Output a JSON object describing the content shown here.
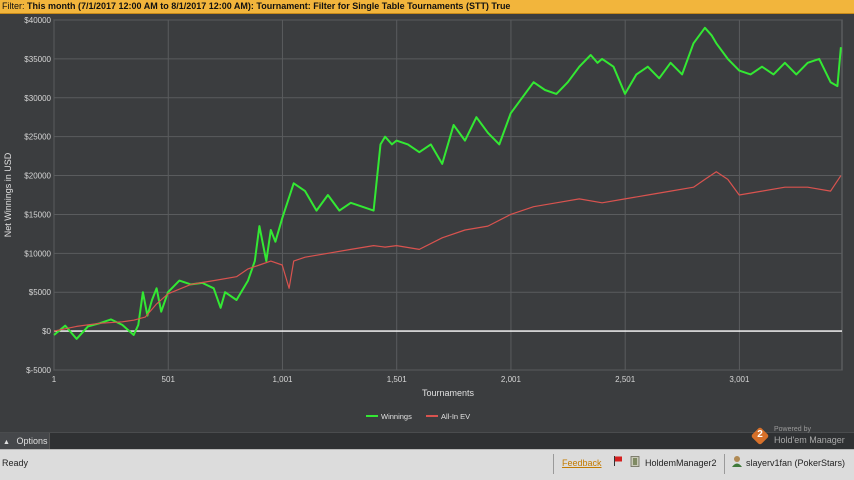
{
  "filter": {
    "label": "Filter:",
    "text": "This month (7/1/2017 12:00 AM to 8/1/2017 12:00 AM): Tournament: Filter for Single Table Tournaments (STT) True"
  },
  "colors": {
    "winnings": "#33e833",
    "allin_ev": "#d9534f",
    "zero_line": "#ffffff",
    "plot_bg": "#3b3d3f",
    "grid": "#5a5c5e"
  },
  "chart_data": {
    "type": "line",
    "xlabel": "Tournaments",
    "ylabel": "Net Winnings in USD",
    "xlim": [
      1,
      3450
    ],
    "ylim": [
      -5000,
      40000
    ],
    "xticks": [
      1,
      501,
      1001,
      1501,
      2001,
      2501,
      3001
    ],
    "xtick_labels": [
      "1",
      "501",
      "1,001",
      "1,501",
      "2,001",
      "2,501",
      "3,001"
    ],
    "yticks": [
      -5000,
      0,
      5000,
      10000,
      15000,
      20000,
      25000,
      30000,
      35000,
      40000
    ],
    "ytick_labels": [
      "$-5000",
      "$0",
      "$5000",
      "$10000",
      "$15000",
      "$20000",
      "$25000",
      "$30000",
      "$35000",
      "$40000"
    ],
    "grid": true,
    "legend_position": "bottom",
    "series": [
      {
        "name": "Winnings",
        "x": [
          1,
          50,
          100,
          150,
          200,
          250,
          300,
          350,
          370,
          390,
          410,
          430,
          450,
          470,
          500,
          550,
          600,
          650,
          700,
          730,
          750,
          800,
          850,
          880,
          900,
          930,
          950,
          970,
          1000,
          1050,
          1100,
          1150,
          1200,
          1250,
          1300,
          1350,
          1400,
          1430,
          1450,
          1480,
          1500,
          1550,
          1600,
          1650,
          1700,
          1750,
          1800,
          1850,
          1900,
          1950,
          2000,
          2050,
          2100,
          2150,
          2200,
          2250,
          2300,
          2350,
          2380,
          2400,
          2450,
          2500,
          2550,
          2600,
          2650,
          2700,
          2750,
          2800,
          2850,
          2880,
          2900,
          2950,
          3000,
          3050,
          3100,
          3150,
          3200,
          3250,
          3300,
          3350,
          3400,
          3430,
          3445
        ],
        "y": [
          -500,
          700,
          -1000,
          600,
          1000,
          1500,
          800,
          -500,
          800,
          5000,
          2000,
          4000,
          5500,
          2500,
          5000,
          6500,
          6000,
          6200,
          5500,
          3000,
          5000,
          4000,
          6500,
          9000,
          13500,
          9000,
          13000,
          11500,
          14500,
          19000,
          18000,
          15500,
          17500,
          15500,
          16500,
          16000,
          15500,
          24000,
          25000,
          24000,
          24500,
          24000,
          23000,
          24000,
          21500,
          26500,
          24500,
          27500,
          25500,
          24000,
          28000,
          30000,
          32000,
          31000,
          30500,
          32000,
          34000,
          35500,
          34500,
          35000,
          34000,
          30500,
          33000,
          34000,
          32500,
          34500,
          33000,
          37000,
          39000,
          38000,
          37000,
          35000,
          33500,
          33000,
          34000,
          33000,
          34500,
          33000,
          34500,
          35000,
          32000,
          31500,
          36500
        ]
      },
      {
        "name": "All-In EV",
        "x": [
          1,
          100,
          200,
          300,
          350,
          400,
          450,
          500,
          600,
          700,
          800,
          850,
          900,
          950,
          1000,
          1030,
          1050,
          1100,
          1200,
          1300,
          1400,
          1450,
          1500,
          1600,
          1700,
          1800,
          1900,
          2000,
          2100,
          2200,
          2300,
          2400,
          2500,
          2600,
          2700,
          2800,
          2850,
          2900,
          2950,
          3000,
          3100,
          3200,
          3300,
          3400,
          3445
        ],
        "y": [
          0,
          600,
          1000,
          1200,
          1400,
          1800,
          3500,
          4800,
          6000,
          6500,
          7000,
          8000,
          8500,
          9000,
          8500,
          5500,
          9000,
          9500,
          10000,
          10500,
          11000,
          10800,
          11000,
          10500,
          12000,
          13000,
          13500,
          15000,
          16000,
          16500,
          17000,
          16500,
          17000,
          17500,
          18000,
          18500,
          19500,
          20500,
          19500,
          17500,
          18000,
          18500,
          18500,
          18000,
          20000
        ]
      }
    ]
  },
  "options": {
    "label": "Options"
  },
  "brand": {
    "powered": "Powered by",
    "product": "Hold'em Manager",
    "badge": "2"
  },
  "status": {
    "ready": "Ready",
    "feedback": "Feedback",
    "app": "HoldemManager2",
    "player": "slayerv1fan (PokerStars)"
  }
}
